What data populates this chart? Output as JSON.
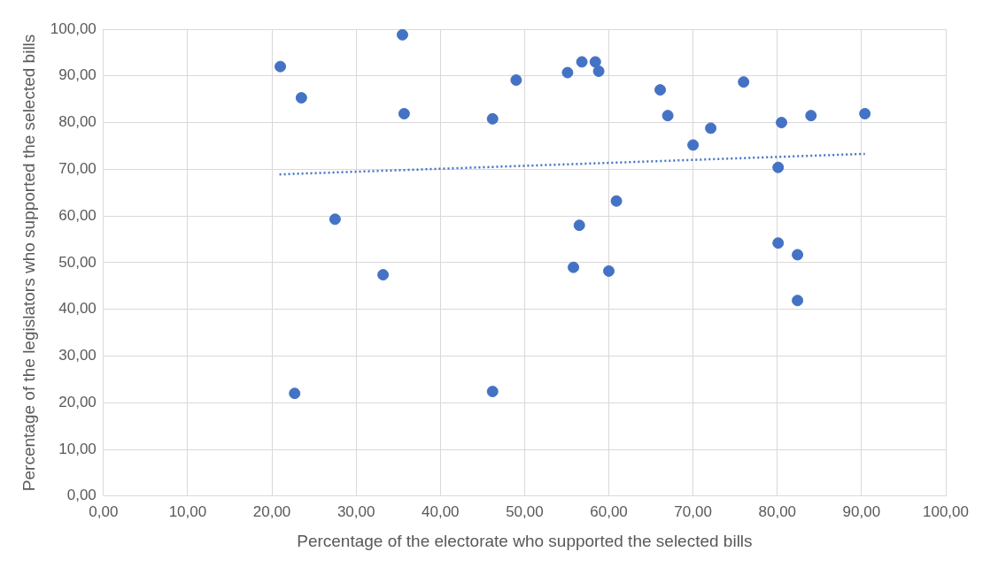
{
  "chart_data": {
    "type": "scatter",
    "xlabel": "Percentage of the electorate who supported the selected bills",
    "ylabel": "Percentage of the legislators who supported the selected bills",
    "xlim": [
      0,
      100
    ],
    "ylim": [
      0,
      100
    ],
    "xticks": [
      {
        "value": 0,
        "label": "0,00"
      },
      {
        "value": 10,
        "label": "10,00"
      },
      {
        "value": 20,
        "label": "20,00"
      },
      {
        "value": 30,
        "label": "30,00"
      },
      {
        "value": 40,
        "label": "40,00"
      },
      {
        "value": 50,
        "label": "50,00"
      },
      {
        "value": 60,
        "label": "60,00"
      },
      {
        "value": 70,
        "label": "70,00"
      },
      {
        "value": 80,
        "label": "80,00"
      },
      {
        "value": 90,
        "label": "90,00"
      },
      {
        "value": 100,
        "label": "100,00"
      }
    ],
    "yticks": [
      {
        "value": 0,
        "label": "0,00"
      },
      {
        "value": 10,
        "label": "10,00"
      },
      {
        "value": 20,
        "label": "20,00"
      },
      {
        "value": 30,
        "label": "30,00"
      },
      {
        "value": 40,
        "label": "40,00"
      },
      {
        "value": 50,
        "label": "50,00"
      },
      {
        "value": 60,
        "label": "60,00"
      },
      {
        "value": 70,
        "label": "70,00"
      },
      {
        "value": 80,
        "label": "80,00"
      },
      {
        "value": 90,
        "label": "90,00"
      },
      {
        "value": 100,
        "label": "100,00"
      }
    ],
    "grid": true,
    "legend": false,
    "series": [
      {
        "color": "#4472c4",
        "marker": "circle",
        "x": [
          21.0,
          23.5,
          27.5,
          22.7,
          33.2,
          35.5,
          35.7,
          46.2,
          46.2,
          49.0,
          55.1,
          56.8,
          58.4,
          58.8,
          55.8,
          56.5,
          60.0,
          60.9,
          66.1,
          67.0,
          70.0,
          72.1,
          76.0,
          80.1,
          80.5,
          80.1,
          82.4,
          82.4,
          84.0,
          90.4
        ],
        "values": [
          92.0,
          85.3,
          59.3,
          22.0,
          47.4,
          98.8,
          81.9,
          80.8,
          22.4,
          89.1,
          90.7,
          93.0,
          93.0,
          91.0,
          49.0,
          58.0,
          48.2,
          63.2,
          87.0,
          81.5,
          75.2,
          78.8,
          88.7,
          70.4,
          80.0,
          54.2,
          51.7,
          41.9,
          81.5,
          81.9
        ]
      },
      {
        "type": "line",
        "color": "#4472c4",
        "marker": "none",
        "line_style": "dotted",
        "x": [
          20.9,
          90.4
        ],
        "values": [
          68.9,
          73.3
        ]
      }
    ]
  }
}
